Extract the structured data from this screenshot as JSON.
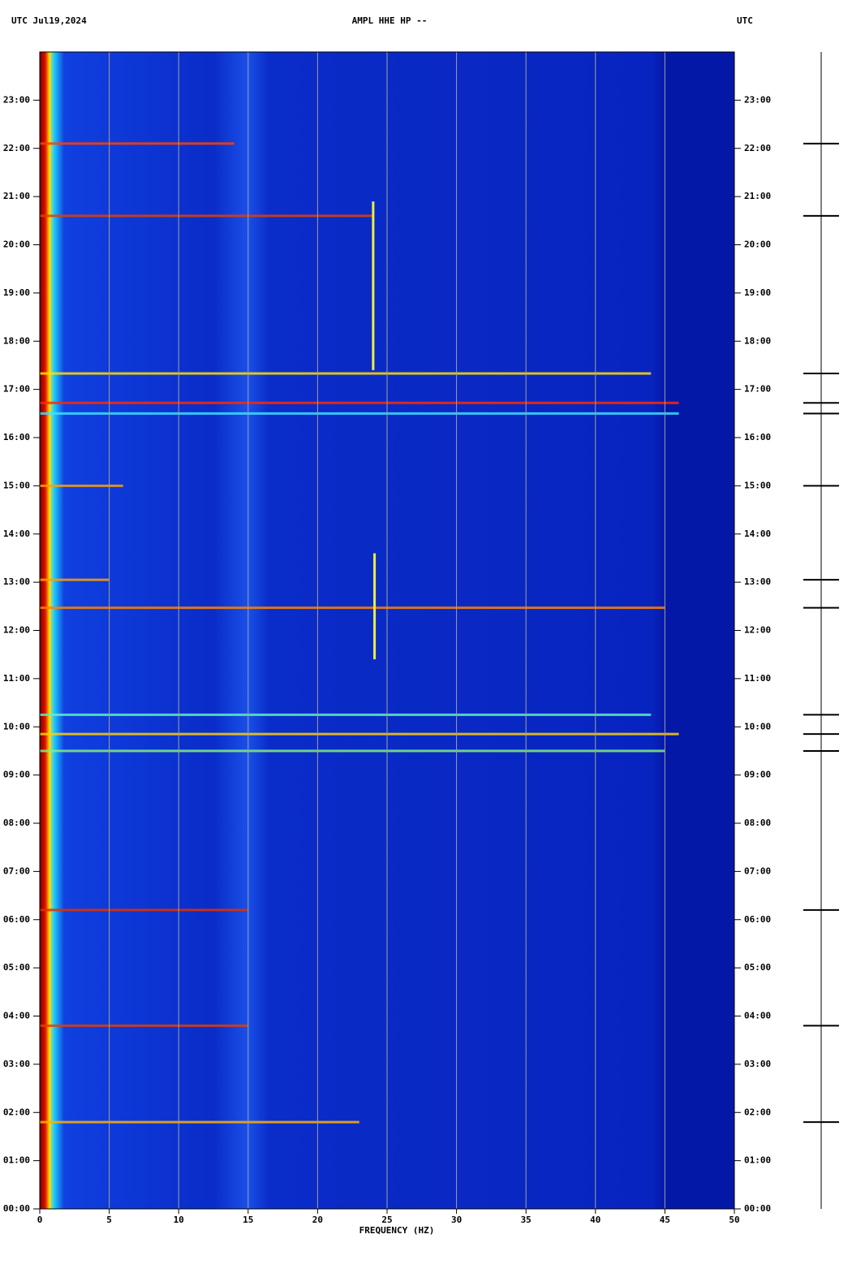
{
  "chart_data": {
    "type": "spectrogram",
    "title_left": "UTC  Jul19,2024",
    "title": "AMPL HHE HP --",
    "title_right": "UTC",
    "x_label": "FREQUENCY (HZ)",
    "xlim": [
      0,
      50
    ],
    "xticks": [
      0,
      5,
      10,
      15,
      20,
      25,
      30,
      35,
      40,
      45,
      50
    ],
    "ylim": [
      0,
      24
    ],
    "yticks": [
      {
        "value": 0,
        "label": "00:00"
      },
      {
        "value": 1,
        "label": "01:00"
      },
      {
        "value": 2,
        "label": "02:00"
      },
      {
        "value": 3,
        "label": "03:00"
      },
      {
        "value": 4,
        "label": "04:00"
      },
      {
        "value": 5,
        "label": "05:00"
      },
      {
        "value": 6,
        "label": "06:00"
      },
      {
        "value": 7,
        "label": "07:00"
      },
      {
        "value": 8,
        "label": "08:00"
      },
      {
        "value": 9,
        "label": "09:00"
      },
      {
        "value": 10,
        "label": "10:00"
      },
      {
        "value": 11,
        "label": "11:00"
      },
      {
        "value": 12,
        "label": "12:00"
      },
      {
        "value": 13,
        "label": "13:00"
      },
      {
        "value": 14,
        "label": "14:00"
      },
      {
        "value": 15,
        "label": "15:00"
      },
      {
        "value": 16,
        "label": "16:00"
      },
      {
        "value": 17,
        "label": "17:00"
      },
      {
        "value": 18,
        "label": "18:00"
      },
      {
        "value": 19,
        "label": "19:00"
      },
      {
        "value": 20,
        "label": "20:00"
      },
      {
        "value": 21,
        "label": "21:00"
      },
      {
        "value": 22,
        "label": "22:00"
      },
      {
        "value": 23,
        "label": "23:00"
      }
    ],
    "grid": true,
    "events": [
      {
        "time": 16.72,
        "fmax": 46,
        "color": "#ff2a00"
      },
      {
        "time": 16.5,
        "fmax": 46,
        "color": "#40e0ff"
      },
      {
        "time": 17.33,
        "fmax": 44,
        "color": "#ffe000"
      },
      {
        "time": 12.47,
        "fmax": 45,
        "color": "#ff8000"
      },
      {
        "time": 10.25,
        "fmax": 44,
        "color": "#60f0c0"
      },
      {
        "time": 9.85,
        "fmax": 46,
        "color": "#ffd000"
      },
      {
        "time": 9.5,
        "fmax": 45,
        "color": "#80f080"
      },
      {
        "time": 22.1,
        "fmax": 14,
        "color": "#ff4000"
      },
      {
        "time": 20.6,
        "fmax": 24,
        "color": "#e04000"
      },
      {
        "time": 15.0,
        "fmax": 6,
        "color": "#ffa000"
      },
      {
        "time": 13.05,
        "fmax": 5,
        "color": "#ffa000"
      },
      {
        "time": 6.2,
        "fmax": 15,
        "color": "#e03000"
      },
      {
        "time": 3.8,
        "fmax": 15,
        "color": "#e04000"
      },
      {
        "time": 1.8,
        "fmax": 23,
        "color": "#ffb000"
      }
    ],
    "tracks": [
      {
        "freq": 24,
        "start": 17.4,
        "end": 20.9
      },
      {
        "freq": 24.1,
        "start": 11.4,
        "end": 13.6
      }
    ]
  }
}
